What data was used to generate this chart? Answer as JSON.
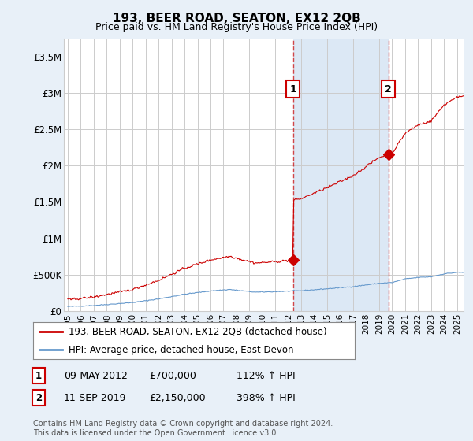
{
  "title": "193, BEER ROAD, SEATON, EX12 2QB",
  "subtitle": "Price paid vs. HM Land Registry's House Price Index (HPI)",
  "legend1": "193, BEER ROAD, SEATON, EX12 2QB (detached house)",
  "legend2": "HPI: Average price, detached house, East Devon",
  "annotation_text": "Contains HM Land Registry data © Crown copyright and database right 2024.\nThis data is licensed under the Open Government Licence v3.0.",
  "sale1_label": "1",
  "sale1_date": "09-MAY-2012",
  "sale1_price": "£700,000",
  "sale1_hpi": "112% ↑ HPI",
  "sale1_year": 2012.36,
  "sale1_value": 700000,
  "sale2_label": "2",
  "sale2_date": "11-SEP-2019",
  "sale2_price": "£2,150,000",
  "sale2_hpi": "398% ↑ HPI",
  "sale2_year": 2019.7,
  "sale2_value": 2150000,
  "ylim": [
    0,
    3750000
  ],
  "yticks": [
    0,
    500000,
    1000000,
    1500000,
    2000000,
    2500000,
    3000000,
    3500000
  ],
  "ytick_labels": [
    "£0",
    "£500K",
    "£1M",
    "£1.5M",
    "£2M",
    "£2.5M",
    "£3M",
    "£3.5M"
  ],
  "red_line_color": "#cc0000",
  "blue_line_color": "#6699cc",
  "shade_color": "#dce8f5",
  "background_color": "#e8f0f8",
  "plot_bg_color": "#ffffff",
  "grid_color": "#cccccc",
  "marker_box_color": "#cc0000"
}
